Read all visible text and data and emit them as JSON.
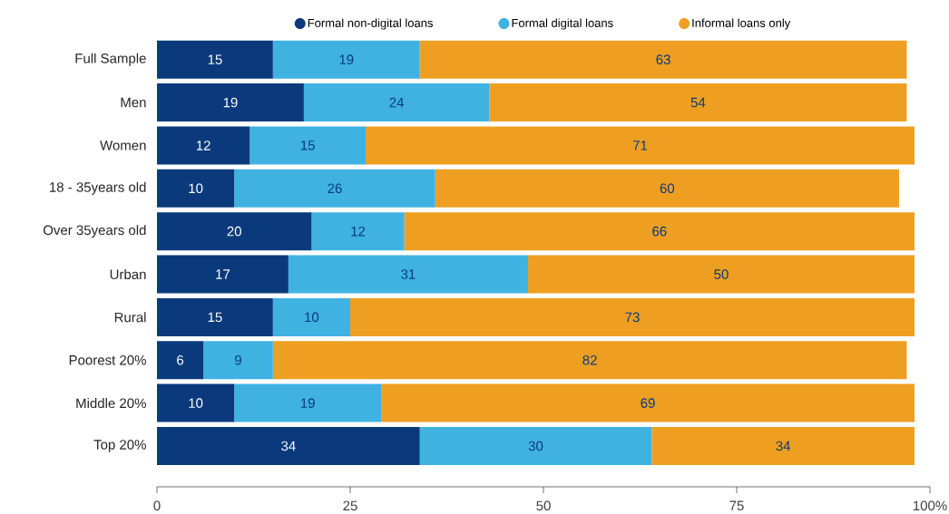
{
  "chart_data": {
    "type": "bar",
    "orientation": "horizontal",
    "stacked": true,
    "data_labels": true,
    "legend": "top",
    "grid": false,
    "categories": [
      "Full Sample",
      "Men",
      "Women",
      "18 - 35years old",
      "Over 35years old",
      "Urban",
      "Rural",
      "Poorest 20%",
      "Middle 20%",
      "Top 20%"
    ],
    "series": [
      {
        "name": "Formal non-digital loans",
        "color": "#0b3a7c",
        "values": [
          15,
          19,
          12,
          10,
          20,
          17,
          15,
          6,
          10,
          34
        ]
      },
      {
        "name": "Formal digital loans",
        "color": "#3fb2e2",
        "values": [
          19,
          24,
          15,
          26,
          12,
          31,
          10,
          9,
          19,
          30
        ]
      },
      {
        "name": "Informal loans only",
        "color": "#ee9f22",
        "values": [
          63,
          54,
          71,
          60,
          66,
          50,
          73,
          82,
          69,
          34
        ]
      }
    ],
    "xlim": [
      0,
      100
    ],
    "xticks": [
      0,
      25,
      50,
      75,
      {
        "value": 100,
        "label": "100%"
      }
    ]
  }
}
